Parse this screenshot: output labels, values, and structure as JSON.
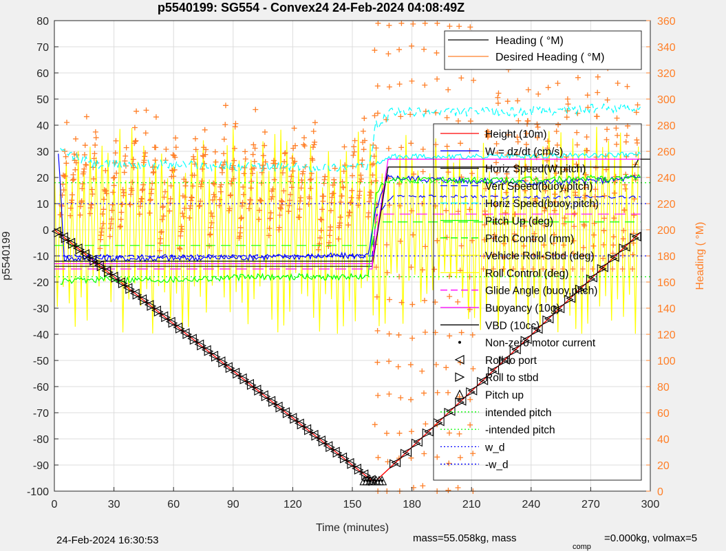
{
  "chart_data": {
    "type": "line",
    "title": "p5540199: SG554 - Convex24 24-Feb-2024 04:08:49Z",
    "xlabel": "Time (minutes)",
    "ylabel_left": "p5540199",
    "ylabel_right": "Heading (  °M)",
    "xlim": [
      0,
      300
    ],
    "ylim_left": [
      -100,
      80
    ],
    "ylim_right": [
      0,
      360
    ],
    "x_ticks": [
      "0",
      "30",
      "60",
      "90",
      "120",
      "150",
      "180",
      "210",
      "240",
      "270",
      "300"
    ],
    "y_left_ticks": [
      "80",
      "70",
      "60",
      "50",
      "40",
      "30",
      "20",
      "10",
      "0",
      "-10",
      "-20",
      "-30",
      "-40",
      "-50",
      "-60",
      "-70",
      "-80",
      "-90",
      "-100"
    ],
    "y_right_ticks": [
      "360",
      "340",
      "320",
      "300",
      "280",
      "260",
      "240",
      "220",
      "200",
      "180",
      "160",
      "140",
      "120",
      "100",
      "80",
      "60",
      "40",
      "20",
      "0"
    ],
    "grid": true,
    "legend_top": {
      "placement": "top-right",
      "entries": [
        {
          "label": "Heading (  °M)",
          "color": "#000000",
          "style": "solid"
        },
        {
          "label": "Desired Heading (  °M)",
          "color": "#ff7f27",
          "style": "solid"
        }
      ]
    },
    "legend_main": {
      "placement": "right",
      "entries": [
        {
          "label": "Height (10m)",
          "color": "#ff0000",
          "style": "solid"
        },
        {
          "label": "W = dz/dt (cm/s)",
          "color": "#0000ff",
          "style": "solid"
        },
        {
          "label": "Horiz Speed(W,pitch)",
          "color": "#000000",
          "style": "solid"
        },
        {
          "label": "Vert Speed(buoy,pitch)",
          "color": "#0000ff",
          "style": "dashed"
        },
        {
          "label": "Horiz Speed(buoy,pitch)",
          "color": "#00ffff",
          "style": "dashed"
        },
        {
          "label": "Pitch Up (deg)",
          "color": "#00ff00",
          "style": "solid"
        },
        {
          "label": "Pitch Control (mm)",
          "color": "#00ff00",
          "style": "dashed"
        },
        {
          "label": "Vehicle Roll-Stbd (deg)",
          "color": "#ffff00",
          "style": "solid"
        },
        {
          "label": "Roll Control (deg)",
          "color": "#ffff00",
          "style": "solid"
        },
        {
          "label": "Glide Angle (buoy,pitch)",
          "color": "#ff00ff",
          "style": "dashed"
        },
        {
          "label": "Buoyancy (10g)",
          "color": "#ff00ff",
          "style": "solid"
        },
        {
          "label": "VBD (10cc)",
          "color": "#000000",
          "style": "solid"
        },
        {
          "label": "Non-zero motor current",
          "color": "#000000",
          "style": "dot"
        },
        {
          "label": "Roll to port",
          "color": "#000000",
          "style": "tri-left"
        },
        {
          "label": "Roll to stbd",
          "color": "#000000",
          "style": "tri-right"
        },
        {
          "label": "Pitch up",
          "color": "#000000",
          "style": "tri-up"
        },
        {
          "label": "intended pitch",
          "color": "#00ff00",
          "style": "dotted"
        },
        {
          "label": "-intended pitch",
          "color": "#00ff00",
          "style": "dotted"
        },
        {
          "label": "w_d",
          "color": "#0000ff",
          "style": "dotted"
        },
        {
          "label": "-w_d",
          "color": "#0000ff",
          "style": "dotted"
        }
      ]
    },
    "series": [
      {
        "name": "Height (10m)",
        "axis": "left",
        "color": "#ff0000",
        "x": [
          0,
          160,
          162,
          295
        ],
        "y": [
          0,
          -96,
          -96,
          -1
        ]
      },
      {
        "name": "W = dz/dt (cm/s)",
        "axis": "left",
        "color": "#0000ff",
        "x": [
          2,
          5,
          20,
          60,
          100,
          140,
          158,
          162,
          168,
          200,
          240,
          280,
          295
        ],
        "y": [
          30,
          -11,
          -11,
          -11,
          -10.5,
          -10,
          -10,
          8,
          20,
          19,
          18,
          19,
          20
        ]
      },
      {
        "name": "Vert Speed(buoy,pitch)",
        "axis": "left",
        "color": "#0000ff",
        "x": [
          5,
          60,
          120,
          160,
          162,
          170,
          230,
          295
        ],
        "y": [
          -10,
          -10,
          -10,
          -10,
          5,
          13,
          12.5,
          12.5
        ]
      },
      {
        "name": "Horiz Speed(W,pitch)",
        "axis": "left",
        "color": "#000000",
        "x": [
          0,
          160,
          168,
          295
        ],
        "y": [
          -12,
          -12,
          24,
          24
        ]
      },
      {
        "name": "VBD (10cc)",
        "axis": "left",
        "color": "#000000",
        "x": [
          0,
          160,
          168,
          292,
          294,
          300
        ],
        "y": [
          -14,
          -14,
          24,
          24,
          27,
          27
        ]
      },
      {
        "name": "Horiz Speed(buoy,pitch)",
        "axis": "left",
        "color": "#00ffff",
        "x": [
          3,
          20,
          60,
          100,
          140,
          158,
          162,
          170,
          230,
          295
        ],
        "y": [
          30,
          25,
          25,
          24,
          24,
          24,
          40,
          45,
          45,
          47
        ]
      },
      {
        "name": "Horiz Speed(buoy,pitch) 2",
        "axis": "left",
        "color": "#00ffff",
        "x": [
          162,
          170,
          230,
          295
        ],
        "y": [
          25,
          28,
          28,
          29
        ]
      },
      {
        "name": "Pitch Up (deg)",
        "axis": "left",
        "color": "#00ff00",
        "x": [
          3,
          20,
          60,
          100,
          140,
          158,
          162,
          170,
          230,
          295
        ],
        "y": [
          -20,
          -19,
          -19,
          -18,
          -18,
          -18,
          15,
          19,
          19,
          20
        ]
      },
      {
        "name": "Pitch Control (mm)",
        "axis": "left",
        "color": "#00ff00",
        "x": [
          0,
          160,
          162,
          295
        ],
        "y": [
          -6,
          -6,
          3,
          3
        ]
      },
      {
        "name": "Glide Angle (buoy,pitch)",
        "axis": "left",
        "color": "#ff00ff",
        "x": [
          0,
          160,
          162,
          295
        ],
        "y": [
          -15,
          -15,
          6,
          6
        ]
      },
      {
        "name": "Buoyancy (10g)",
        "axis": "left",
        "color": "#ff00ff",
        "x": [
          0,
          160,
          168,
          295
        ],
        "y": [
          -13,
          -13,
          27,
          27
        ]
      }
    ],
    "reference_lines": [
      {
        "label": "intended pitch",
        "y": 18,
        "color": "#00ff00"
      },
      {
        "label": "-intended pitch",
        "y": -18,
        "color": "#00ff00"
      },
      {
        "label": "w_d",
        "y": 10,
        "color": "#0000ff"
      },
      {
        "label": "-w_d",
        "y": -10,
        "color": "#0000ff"
      }
    ],
    "vbd_bands": {
      "y_low": -40,
      "y_high": 40,
      "color": "#ffff00"
    },
    "desired_heading_axis": "right",
    "heading_color": "#ff7f27"
  },
  "footer": {
    "timestamp": "24-Feb-2024 16:30:53",
    "mass_text": "mass=55.058kg, mass",
    "comp_sub": "comp",
    "mass2_text": "=0.000kg, volmax=5"
  }
}
